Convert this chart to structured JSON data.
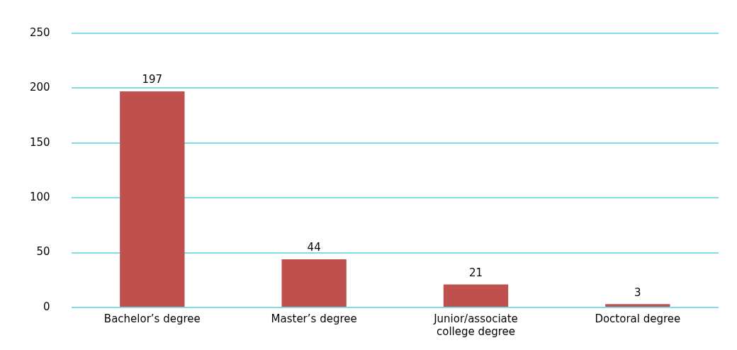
{
  "chart_data": {
    "type": "bar",
    "categories": [
      "Bachelor’s degree",
      "Master’s degree",
      "Junior/associate college degree",
      "Doctoral degree"
    ],
    "values": [
      197,
      44,
      21,
      3
    ],
    "color": "#c0504d",
    "ylim": [
      0,
      250
    ],
    "yticks": [
      0,
      50,
      100,
      150,
      200,
      250
    ],
    "grid": "y",
    "data_labels": true,
    "legend": false
  }
}
